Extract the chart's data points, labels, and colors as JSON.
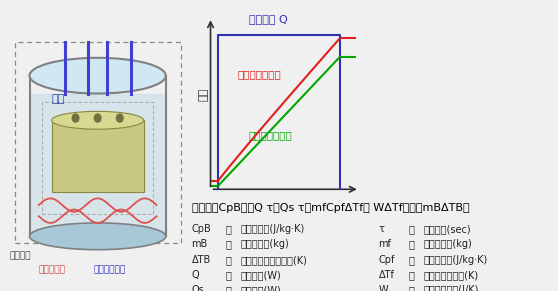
{
  "bg_color": "#f0f0f0",
  "graph_power_color": "#3030b0",
  "graph_surface_color": "#e02020",
  "graph_medium_color": "#00a800",
  "cyl_liquid_color": "#c0dce8",
  "cyl_wall_color": "#808080",
  "cyl_heater_color": "#e05050",
  "cyl_rod_color": "#4040d0",
  "cyl_battery_color": "#c8c880",
  "label_power": "投入電力 Q",
  "label_surface": "電池の表面温度",
  "label_medium": "熱媒の温度上昇",
  "label_yaxis": "温度",
  "label_netsu": "熱媒",
  "label_heater": "ヒーター線",
  "label_sensor": "温度センサー",
  "label_container": "断熱容器",
  "formula_line": "電池比熱CpB＝（Q τ＋Qs τ －mⁱCpⁱΔTⁱ－ WΔTf）／（mBΔTB）",
  "params_left": [
    [
      "CpB",
      "：",
      "電池の比熱(J/kg·K)"
    ],
    [
      "mB",
      "：",
      "電池の質量(kg)"
    ],
    [
      "ΔTB",
      "：",
      "電池の表面温度上昇(K)"
    ],
    [
      "Q",
      "：",
      "投入電力(W)"
    ],
    [
      "Qs",
      "：",
      "撹拌入熱(W)"
    ]
  ],
  "params_right": [
    [
      "τ",
      "：",
      "加熱時間(sec)"
    ],
    [
      "mf",
      "：",
      "熱媒の質量(kg)"
    ],
    [
      "Cpf",
      "：",
      "熱媒の比熱(J/kg·K)"
    ],
    [
      "ΔTf",
      "：",
      "熱媒の温度上昇(K)"
    ],
    [
      "W",
      "：",
      "装置の熱容量(J/K)"
    ]
  ]
}
